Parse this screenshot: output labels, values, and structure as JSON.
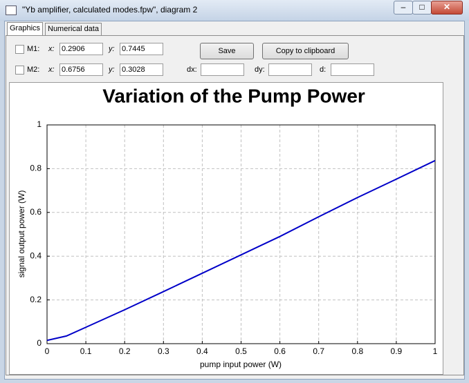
{
  "window": {
    "title": "\"Yb amplifier, calculated modes.fpw\", diagram 2"
  },
  "tabs": [
    "Graphics",
    "Numerical data"
  ],
  "markers": [
    {
      "label": "M1:",
      "x_label": "x:",
      "x": "0.2906",
      "y_label": "y:",
      "y": "0.7445"
    },
    {
      "label": "M2:",
      "x_label": "x:",
      "x": "0.6756",
      "y_label": "y:",
      "y": "0.3028"
    }
  ],
  "buttons": [
    "Save",
    "Copy to clipboard"
  ],
  "deltas": [
    "dx:",
    "dy:",
    "d:"
  ],
  "chart_data": {
    "type": "line",
    "title": "Variation of the Pump Power",
    "xlabel": "pump input power (W)",
    "ylabel": "signal output power (W)",
    "x": [
      0,
      0.05,
      0.1,
      0.2,
      0.3,
      0.4,
      0.5,
      0.6,
      0.7,
      0.8,
      0.9,
      1
    ],
    "series": [
      {
        "color": "#0000c8",
        "values": [
          0.015,
          0.035,
          0.075,
          0.155,
          0.238,
          0.322,
          0.406,
          0.49,
          0.58,
          0.668,
          0.752,
          0.837
        ]
      }
    ],
    "xlim": [
      0,
      1
    ],
    "ylim": [
      0,
      1
    ],
    "xticks": [
      0,
      0.1,
      0.2,
      0.3,
      0.4,
      0.5,
      0.6,
      0.7,
      0.8,
      0.9,
      1
    ],
    "yticks": [
      0,
      0.2,
      0.4,
      0.6,
      0.8,
      1
    ],
    "grid": true
  }
}
